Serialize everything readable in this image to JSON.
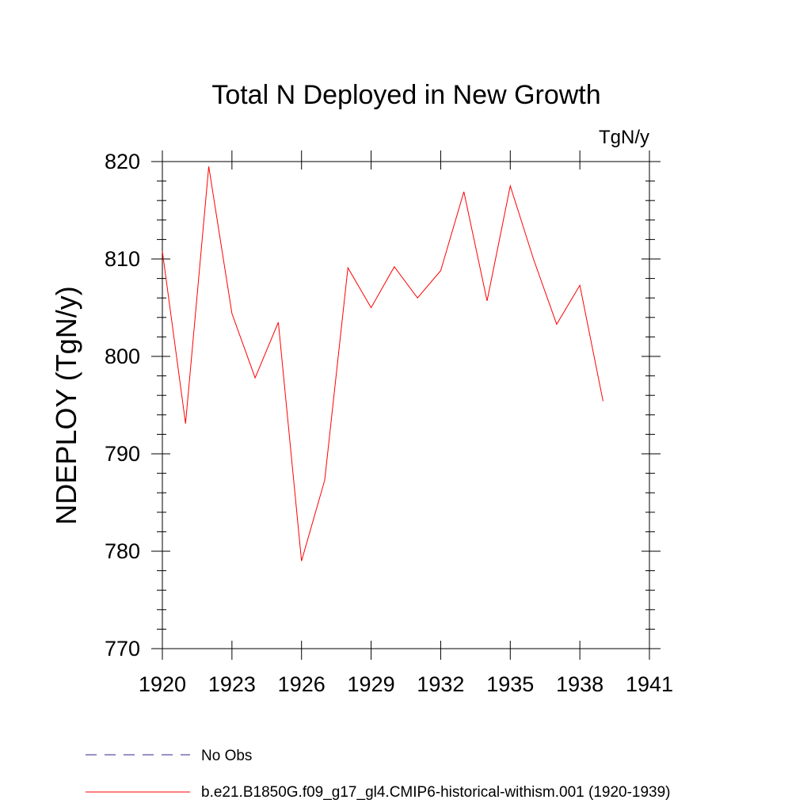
{
  "chart_data": {
    "type": "line",
    "title": "Total N Deployed in New Growth",
    "units_label": "TgN/y",
    "ylabel": "NDEPLOY  (TgN/y)",
    "xlabel": "",
    "xlim": [
      1920,
      1941
    ],
    "ylim": [
      770,
      820
    ],
    "x_ticks": [
      1920,
      1923,
      1926,
      1929,
      1932,
      1935,
      1938,
      1941
    ],
    "y_ticks": [
      770,
      780,
      790,
      800,
      810,
      820
    ],
    "grid": false,
    "legend_position": "bottom",
    "series": [
      {
        "name": "b.e21.B1850G.f09_g17_gl4.CMIP6-historical-withism.001 (1920-1939)",
        "color": "#ff0000",
        "style": "solid",
        "x": [
          1920,
          1921,
          1922,
          1923,
          1924,
          1925,
          1926,
          1927,
          1928,
          1929,
          1930,
          1931,
          1932,
          1933,
          1934,
          1935,
          1936,
          1937,
          1938,
          1939
        ],
        "values": [
          810.8,
          793.1,
          819.5,
          804.4,
          797.8,
          803.5,
          779.0,
          787.3,
          809.1,
          805.0,
          809.2,
          806.0,
          808.8,
          816.9,
          805.7,
          817.5,
          810.0,
          803.3,
          807.3,
          795.4
        ]
      }
    ],
    "legend": [
      {
        "label": "No Obs",
        "color": "#5b4fa8",
        "style": "dashed"
      },
      {
        "label": "b.e21.B1850G.f09_g17_gl4.CMIP6-historical-withism.001 (1920-1939)",
        "color": "#ff0000",
        "style": "solid"
      }
    ]
  }
}
